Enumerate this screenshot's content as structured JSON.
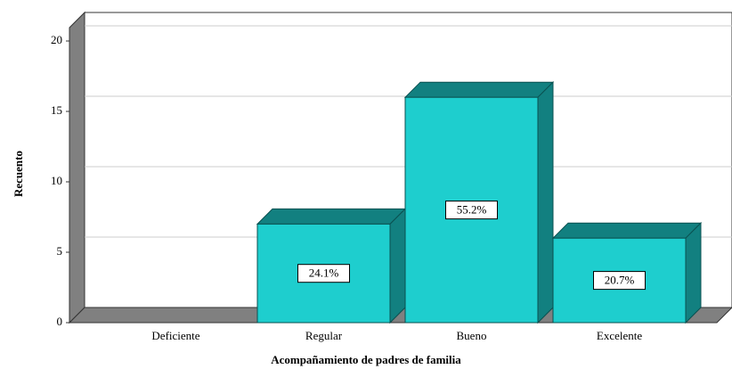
{
  "chart_data": {
    "type": "bar3d",
    "x_label": "Acompañamiento de padres de familia",
    "y_label": "Recuento",
    "categories": [
      "Deficiente",
      "Regular",
      "Bueno",
      "Excelente"
    ],
    "values": [
      0,
      7,
      16,
      6
    ],
    "value_labels": [
      null,
      "24.1%",
      "55.2%",
      "20.7%"
    ],
    "color": "#1ecece",
    "ylim": [
      0,
      20
    ],
    "yticks": [
      0,
      5,
      10,
      15,
      20
    ],
    "grid": true
  }
}
